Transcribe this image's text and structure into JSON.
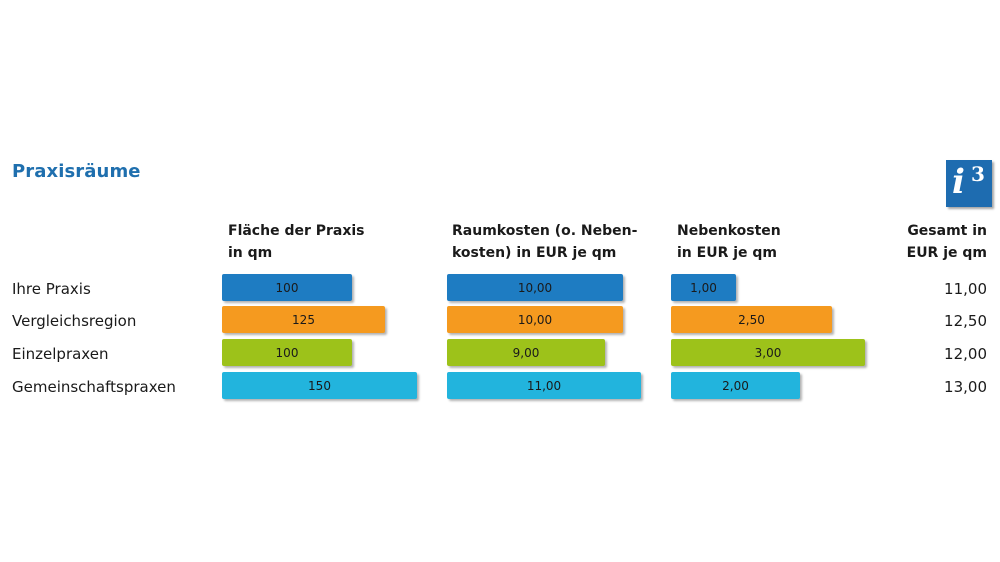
{
  "title": "Praxisräume",
  "logo": {
    "icon": "info-i3-icon",
    "letter": "i",
    "superscript": "3"
  },
  "colors": {
    "title": "#1f6fae",
    "Ihre Praxis": "#1e7cc2",
    "Vergleichsregion": "#f59a1f",
    "Einzelpraxen": "#9dc21a",
    "Gemeinschaftspraxen": "#22b4dd"
  },
  "columns": [
    {
      "header": "Fläche der Praxis\nin qm"
    },
    {
      "header": "Raumkosten (o. Neben-\nkosten) in EUR je qm"
    },
    {
      "header": "Nebenkosten\nin EUR je qm"
    }
  ],
  "total_header": "Gesamt in\nEUR je qm",
  "rows": [
    {
      "label": "Ihre Praxis",
      "values": [
        "100",
        "10,00",
        "1,00"
      ],
      "total": "11,00"
    },
    {
      "label": "Vergleichsregion",
      "values": [
        "125",
        "10,00",
        "2,50"
      ],
      "total": "12,50"
    },
    {
      "label": "Einzelpraxen",
      "values": [
        "100",
        "9,00",
        "3,00"
      ],
      "total": "12,00"
    },
    {
      "label": "Gemeinschaftspraxen",
      "values": [
        "150",
        "11,00",
        "2,00"
      ],
      "total": "13,00"
    }
  ],
  "chart_data": {
    "type": "bar",
    "title": "Praxisräume",
    "categories": [
      "Ihre Praxis",
      "Vergleichsregion",
      "Einzelpraxen",
      "Gemeinschaftspraxen"
    ],
    "series": [
      {
        "name": "Fläche der Praxis in qm",
        "values": [
          100,
          125,
          100,
          150
        ]
      },
      {
        "name": "Raumkosten (o. Nebenkosten) in EUR je qm",
        "values": [
          10.0,
          10.0,
          9.0,
          11.0
        ]
      },
      {
        "name": "Nebenkosten in EUR je qm",
        "values": [
          1.0,
          2.5,
          3.0,
          2.0
        ]
      },
      {
        "name": "Gesamt in EUR je qm",
        "values": [
          11.0,
          12.5,
          12.0,
          13.0
        ]
      }
    ],
    "orientation": "horizontal",
    "grid": false,
    "legend": "none"
  }
}
